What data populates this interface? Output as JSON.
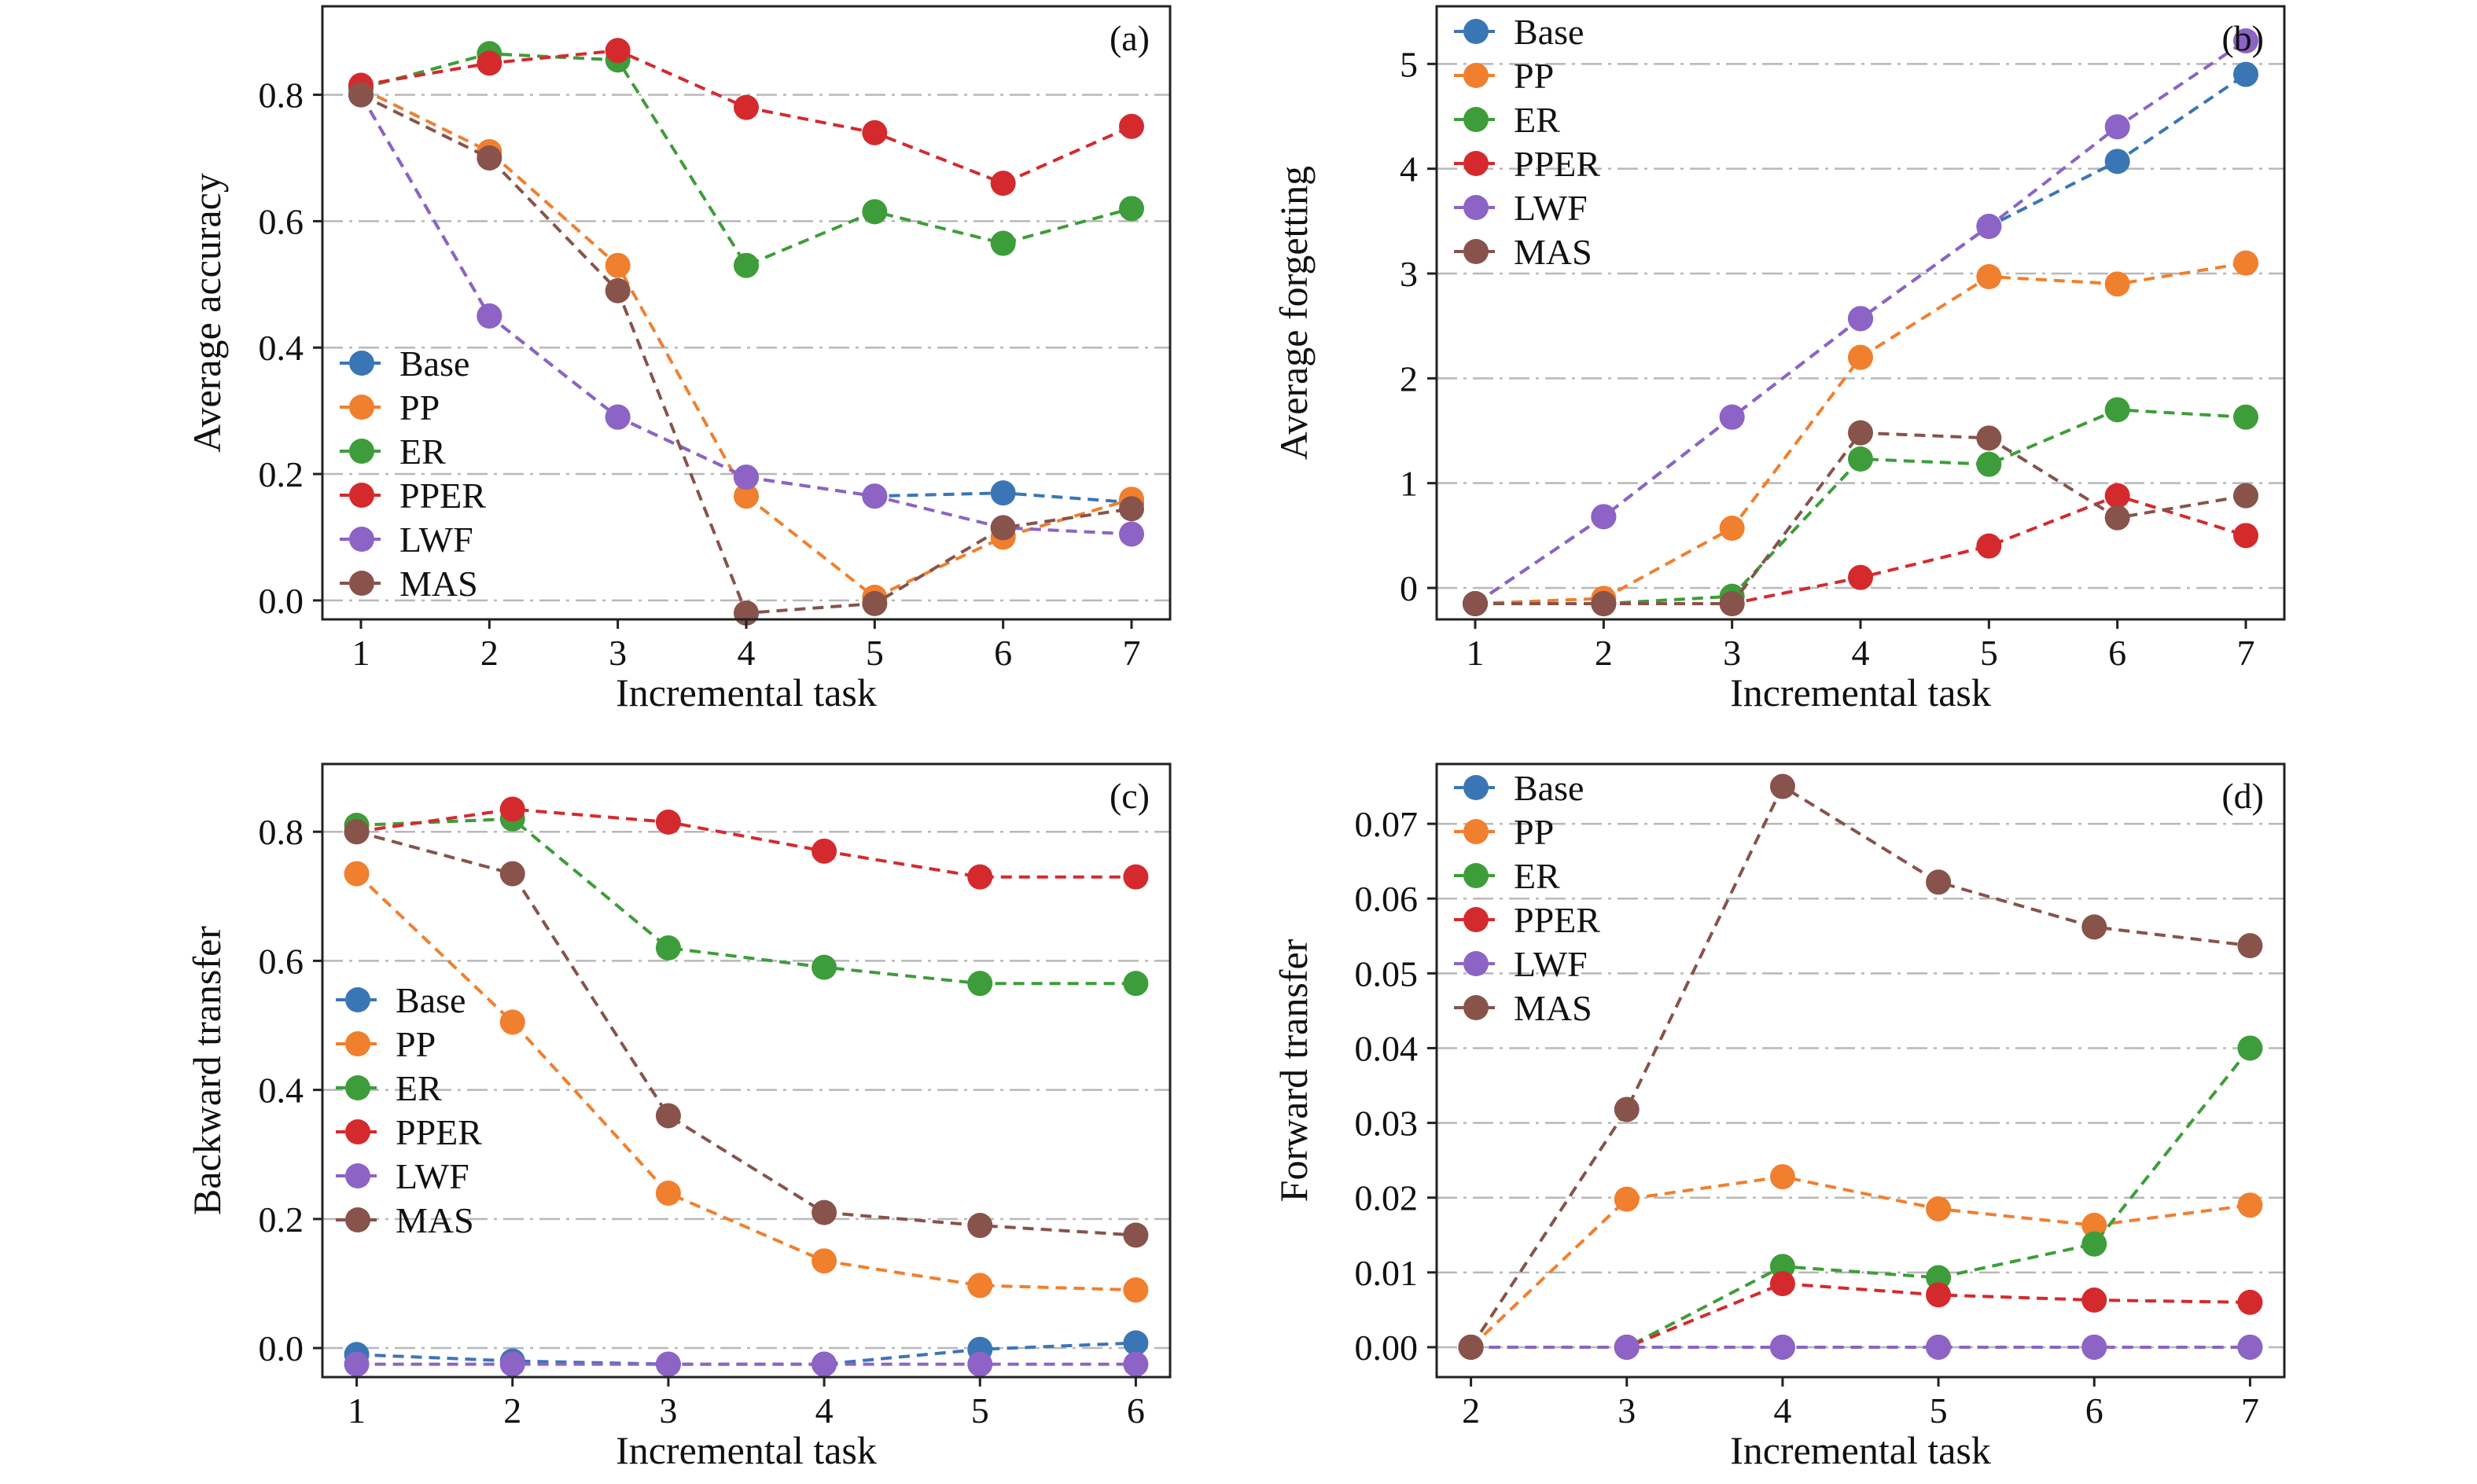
{
  "series_colors": {
    "Base": "#3a76b5",
    "PP": "#f07f2e",
    "ER": "#3d9d3a",
    "PPER": "#d42a2d",
    "LWF": "#8d63c5",
    "MAS": "#87534b"
  },
  "chart_data": [
    {
      "panel": "(a)",
      "type": "line",
      "xlabel": "Incremental task",
      "ylabel": "Average accuracy",
      "x": [
        1,
        2,
        3,
        4,
        5,
        6,
        7
      ],
      "xticks": [
        "1",
        "2",
        "3",
        "4",
        "5",
        "6",
        "7"
      ],
      "yticks": [
        "0.0",
        "0.2",
        "0.4",
        "0.6",
        "0.8"
      ],
      "xlim": [
        0.7,
        7.3
      ],
      "ylim": [
        -0.03,
        0.94
      ],
      "legend": "center-left",
      "series": [
        {
          "name": "Base",
          "values": [
            0.8,
            0.45,
            0.29,
            0.195,
            0.165,
            0.17,
            0.155
          ]
        },
        {
          "name": "PP",
          "values": [
            0.81,
            0.71,
            0.53,
            0.165,
            0.005,
            0.1,
            0.16
          ]
        },
        {
          "name": "ER",
          "values": [
            0.81,
            0.865,
            0.855,
            0.53,
            0.615,
            0.565,
            0.62
          ]
        },
        {
          "name": "PPER",
          "values": [
            0.815,
            0.85,
            0.87,
            0.78,
            0.74,
            0.66,
            0.75
          ]
        },
        {
          "name": "LWF",
          "values": [
            0.8,
            0.45,
            0.29,
            0.195,
            0.165,
            0.115,
            0.105
          ]
        },
        {
          "name": "MAS",
          "values": [
            0.8,
            0.7,
            0.49,
            -0.02,
            -0.005,
            0.115,
            0.145
          ]
        }
      ]
    },
    {
      "panel": "(b)",
      "type": "line",
      "xlabel": "Incremental task",
      "ylabel": "Average forgetting",
      "x": [
        1,
        2,
        3,
        4,
        5,
        6,
        7
      ],
      "xticks": [
        "1",
        "2",
        "3",
        "4",
        "5",
        "6",
        "7"
      ],
      "yticks": [
        "0",
        "1",
        "2",
        "3",
        "4",
        "5"
      ],
      "xlim": [
        0.7,
        7.3
      ],
      "ylim": [
        -0.3,
        5.55
      ],
      "legend": "top-left",
      "series": [
        {
          "name": "Base",
          "values": [
            -0.15,
            0.68,
            1.63,
            2.57,
            3.45,
            4.07,
            4.9
          ]
        },
        {
          "name": "PP",
          "values": [
            -0.15,
            -0.1,
            0.57,
            2.2,
            2.97,
            2.9,
            3.1
          ]
        },
        {
          "name": "ER",
          "values": [
            -0.15,
            -0.15,
            -0.08,
            1.23,
            1.18,
            1.7,
            1.63
          ]
        },
        {
          "name": "PPER",
          "values": [
            -0.15,
            -0.15,
            -0.15,
            0.1,
            0.4,
            0.88,
            0.5
          ]
        },
        {
          "name": "LWF",
          "values": [
            -0.15,
            0.68,
            1.63,
            2.57,
            3.45,
            4.4,
            5.22
          ]
        },
        {
          "name": "MAS",
          "values": [
            -0.15,
            -0.15,
            -0.15,
            1.48,
            1.43,
            0.67,
            0.88
          ]
        }
      ]
    },
    {
      "panel": "(c)",
      "type": "line",
      "xlabel": "Incremental task",
      "ylabel": "Backward transfer",
      "x": [
        1,
        2,
        3,
        4,
        5,
        6
      ],
      "xticks": [
        "1",
        "2",
        "3",
        "4",
        "5",
        "6"
      ],
      "yticks": [
        "0.0",
        "0.2",
        "0.4",
        "0.6",
        "0.8"
      ],
      "xlim": [
        0.78,
        6.22
      ],
      "ylim": [
        -0.045,
        0.905
      ],
      "legend": "center-left",
      "series": [
        {
          "name": "Base",
          "values": [
            -0.01,
            -0.02,
            -0.025,
            -0.025,
            -0.002,
            0.008
          ]
        },
        {
          "name": "PP",
          "values": [
            0.735,
            0.505,
            0.24,
            0.135,
            0.097,
            0.09
          ]
        },
        {
          "name": "ER",
          "values": [
            0.81,
            0.82,
            0.62,
            0.59,
            0.565,
            0.565
          ]
        },
        {
          "name": "PPER",
          "values": [
            0.8,
            0.835,
            0.815,
            0.77,
            0.73,
            0.73
          ]
        },
        {
          "name": "LWF",
          "values": [
            -0.025,
            -0.025,
            -0.025,
            -0.025,
            -0.025,
            -0.025
          ]
        },
        {
          "name": "MAS",
          "values": [
            0.8,
            0.735,
            0.36,
            0.21,
            0.19,
            0.175
          ]
        }
      ]
    },
    {
      "panel": "(d)",
      "type": "line",
      "xlabel": "Incremental task",
      "ylabel": "Forward transfer",
      "x": [
        2,
        3,
        4,
        5,
        6,
        7
      ],
      "xticks": [
        "2",
        "3",
        "4",
        "5",
        "6",
        "7"
      ],
      "yticks": [
        "0.00",
        "0.01",
        "0.02",
        "0.03",
        "0.04",
        "0.05",
        "0.06",
        "0.07"
      ],
      "xlim": [
        1.78,
        7.22
      ],
      "ylim": [
        -0.004,
        0.078
      ],
      "legend": "top-left",
      "series": [
        {
          "name": "Base",
          "values": [
            0,
            0,
            0,
            0,
            0,
            0
          ]
        },
        {
          "name": "PP",
          "values": [
            0,
            0.0198,
            0.0228,
            0.0185,
            0.0163,
            0.019
          ]
        },
        {
          "name": "ER",
          "values": [
            0,
            0,
            0.0108,
            0.0093,
            0.0138,
            0.04
          ]
        },
        {
          "name": "PPER",
          "values": [
            0,
            0,
            0.0085,
            0.007,
            0.0063,
            0.006
          ]
        },
        {
          "name": "LWF",
          "values": [
            0,
            0,
            0,
            0,
            0,
            0
          ]
        },
        {
          "name": "MAS",
          "values": [
            0,
            0.0318,
            0.075,
            0.0622,
            0.0562,
            0.0537
          ]
        }
      ]
    }
  ]
}
